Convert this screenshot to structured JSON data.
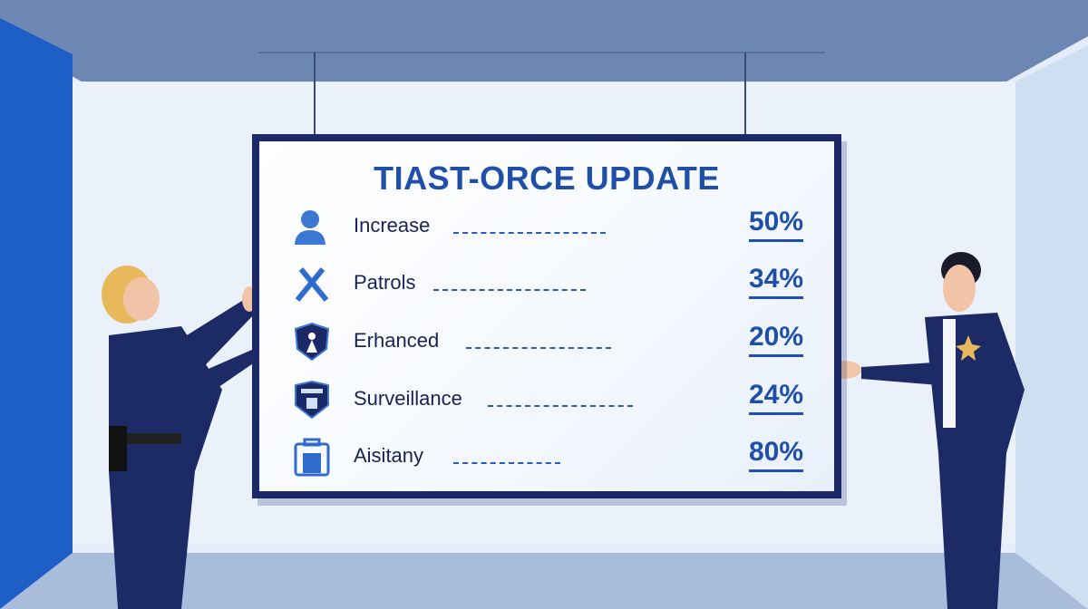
{
  "board": {
    "title": "TIAST-ORCE UPDATE",
    "rows": [
      {
        "label": "Increase",
        "value": "50%",
        "icon": "person-icon"
      },
      {
        "label": "Patrols",
        "value": "34%",
        "icon": "crossed-batons-icon"
      },
      {
        "label": "Erhanced",
        "value": "20%",
        "icon": "shield-icon"
      },
      {
        "label": "Surveillance",
        "value": "24%",
        "icon": "badge-icon"
      },
      {
        "label": "Aisitany",
        "value": "80%",
        "icon": "building-icon"
      }
    ]
  },
  "colors": {
    "accent": "#1f4fa8",
    "frame": "#1b2a66",
    "uniform": "#1c2a66"
  }
}
